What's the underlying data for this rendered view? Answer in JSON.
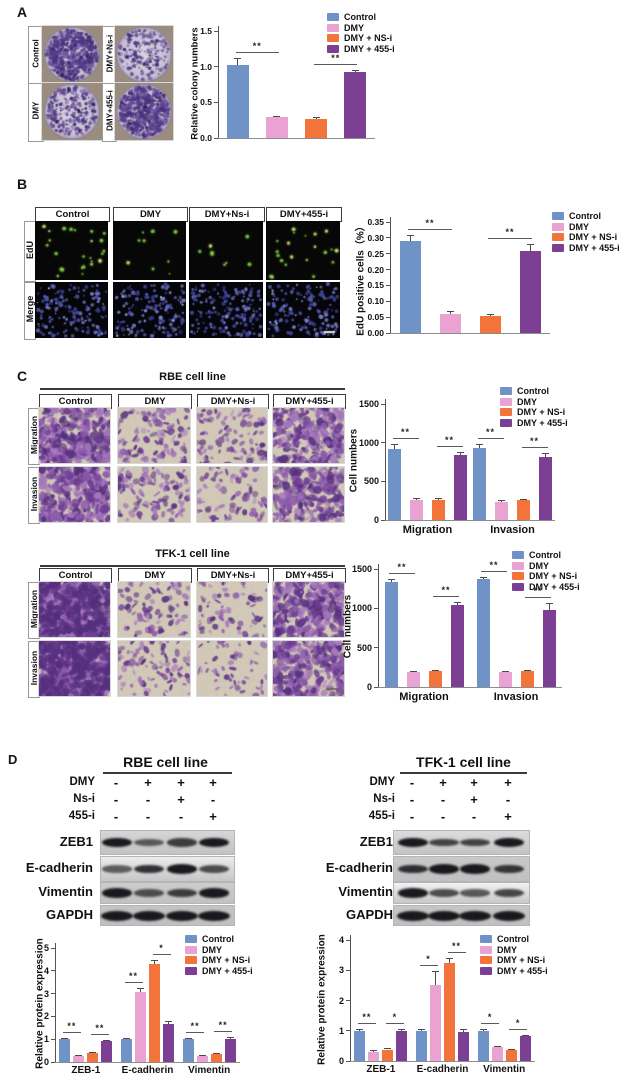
{
  "panels": {
    "A": {
      "label": "A",
      "colony_images": [
        {
          "label": "Control",
          "density": "high"
        },
        {
          "label": "DMY+Ns-i",
          "density": "low"
        },
        {
          "label": "DMY",
          "density": "medium"
        },
        {
          "label": "DMY+455-i",
          "density": "high"
        }
      ]
    },
    "B": {
      "label": "B",
      "col_headers": [
        "Control",
        "DMY",
        "DMY+Ns-i",
        "DMY+455-i"
      ],
      "row_labels": [
        "EdU",
        "Merge"
      ],
      "edu_dot_counts": [
        26,
        9,
        8,
        21
      ],
      "merge_cell_counts": [
        150,
        145,
        150,
        148
      ]
    },
    "C": {
      "label": "C",
      "sections": [
        {
          "title": "RBE cell line",
          "col_headers": [
            "Control",
            "DMY",
            "DMY+Ns-i",
            "DMY+455-i"
          ],
          "row_labels": [
            "Migration",
            "Invasion"
          ],
          "densities": [
            [
              0.55,
              0.2,
              0.17,
              0.45
            ],
            [
              0.52,
              0.2,
              0.15,
              0.42
            ]
          ]
        },
        {
          "title": "TFK-1 cell line",
          "col_headers": [
            "Control",
            "DMY",
            "DMY+Ns-i",
            "DMY+455-i"
          ],
          "row_labels": [
            "Migration",
            "Invasion"
          ],
          "densities": [
            [
              0.8,
              0.15,
              0.12,
              0.5
            ],
            [
              0.78,
              0.16,
              0.1,
              0.48
            ]
          ]
        }
      ]
    },
    "D": {
      "label": "D",
      "sections": [
        {
          "title": "RBE cell line",
          "dose_rows": [
            {
              "label": "DMY",
              "values": [
                "-",
                "+",
                "+",
                "+"
              ]
            },
            {
              "label": "Ns-i",
              "values": [
                "-",
                "-",
                "+",
                "-"
              ]
            },
            {
              "label": "455-i",
              "values": [
                "-",
                "-",
                "-",
                "+"
              ]
            }
          ],
          "blot_labels": [
            "ZEB1",
            "E-cadherin",
            "Vimentin",
            "GAPDH"
          ],
          "band_intensities": [
            [
              1,
              0.45,
              0.7,
              1
            ],
            [
              0.45,
              0.8,
              1,
              0.6
            ],
            [
              1,
              0.55,
              0.7,
              1
            ],
            [
              1,
              1,
              1,
              1
            ]
          ]
        },
        {
          "title": "TFK-1 cell line",
          "dose_rows": [
            {
              "label": "DMY",
              "values": [
                "-",
                "+",
                "+",
                "+"
              ]
            },
            {
              "label": "Ns-i",
              "values": [
                "-",
                "-",
                "+",
                "-"
              ]
            },
            {
              "label": "455-i",
              "values": [
                "-",
                "-",
                "-",
                "+"
              ]
            }
          ],
          "blot_labels": [
            "ZEB1",
            "E-cadherin",
            "Vimentin",
            "GAPDH"
          ],
          "band_intensities": [
            [
              1,
              0.65,
              0.65,
              1
            ],
            [
              0.8,
              1,
              1,
              0.75
            ],
            [
              1,
              0.6,
              0.5,
              0.65
            ],
            [
              1,
              1,
              1,
              1
            ]
          ]
        }
      ]
    }
  },
  "legend_labels": [
    "Control",
    "DMY",
    "DMY + NS-i",
    "DMY + 455-i"
  ],
  "series_colors": [
    "#6f93c6",
    "#e9a2d2",
    "#f2743a",
    "#7c3f93"
  ],
  "chart_data": [
    {
      "id": "A",
      "type": "bar",
      "ylabel": "Relative colony numbers",
      "ylim": [
        0,
        1.5
      ],
      "yticks": [
        "0.0",
        "0.5",
        "1.0",
        "1.5"
      ],
      "categories": [
        ""
      ],
      "series": [
        {
          "name": "Control",
          "values": [
            1.03
          ],
          "errors": [
            0.09
          ]
        },
        {
          "name": "DMY",
          "values": [
            0.29
          ],
          "errors": [
            0.025
          ]
        },
        {
          "name": "DMY + NS-i",
          "values": [
            0.27
          ],
          "errors": [
            0.03
          ]
        },
        {
          "name": "DMY + 455-i",
          "values": [
            0.93
          ],
          "errors": [
            0.02
          ]
        }
      ],
      "significance": [
        {
          "group": 0,
          "pair": [
            0,
            1
          ],
          "label": "**"
        },
        {
          "group": 0,
          "pair": [
            2,
            3
          ],
          "label": "**"
        }
      ],
      "legend_position": "top-right"
    },
    {
      "id": "B",
      "type": "bar",
      "ylabel": "EdU positive cells（%）",
      "ylim": [
        0,
        0.35
      ],
      "yticks": [
        "0.00",
        "0.05",
        "0.10",
        "0.15",
        "0.20",
        "0.25",
        "0.30",
        "0.35"
      ],
      "categories": [
        ""
      ],
      "series": [
        {
          "name": "Control",
          "values": [
            0.29
          ],
          "errors": [
            0.018
          ]
        },
        {
          "name": "DMY",
          "values": [
            0.06
          ],
          "errors": [
            0.008
          ]
        },
        {
          "name": "DMY + NS-i",
          "values": [
            0.055
          ],
          "errors": [
            0.005
          ]
        },
        {
          "name": "DMY + 455-i",
          "values": [
            0.26
          ],
          "errors": [
            0.022
          ]
        }
      ],
      "significance": [
        {
          "group": 0,
          "pair": [
            0,
            1
          ],
          "label": "**"
        },
        {
          "group": 0,
          "pair": [
            2,
            3
          ],
          "label": "**"
        }
      ],
      "legend_position": "top-right"
    },
    {
      "id": "C-RBE",
      "type": "bar",
      "ylabel": "Cell numbers",
      "ylim": [
        0,
        1500
      ],
      "yticks": [
        "0",
        "500",
        "1000",
        "1500"
      ],
      "categories": [
        "Migration",
        "Invasion"
      ],
      "series": [
        {
          "name": "Control",
          "values": [
            920,
            930
          ],
          "errors": [
            60,
            55
          ]
        },
        {
          "name": "DMY",
          "values": [
            265,
            235
          ],
          "errors": [
            15,
            20
          ]
        },
        {
          "name": "DMY + NS-i",
          "values": [
            260,
            260
          ],
          "errors": [
            20,
            15
          ]
        },
        {
          "name": "DMY + 455-i",
          "values": [
            840,
            820
          ],
          "errors": [
            45,
            40
          ]
        }
      ],
      "significance": [
        {
          "group": 0,
          "pair": [
            0,
            1
          ],
          "label": "**"
        },
        {
          "group": 0,
          "pair": [
            2,
            3
          ],
          "label": "**"
        },
        {
          "group": 1,
          "pair": [
            0,
            1
          ],
          "label": "**"
        },
        {
          "group": 1,
          "pair": [
            2,
            3
          ],
          "label": "**"
        }
      ],
      "legend_position": "top-right"
    },
    {
      "id": "C-TFK",
      "type": "bar",
      "ylabel": "Cell numbers",
      "ylim": [
        0,
        1500
      ],
      "yticks": [
        "0",
        "500",
        "1000",
        "1500"
      ],
      "categories": [
        "Migration",
        "Invasion"
      ],
      "series": [
        {
          "name": "Control",
          "values": [
            1340,
            1370
          ],
          "errors": [
            35,
            30
          ]
        },
        {
          "name": "DMY",
          "values": [
            185,
            190
          ],
          "errors": [
            15,
            15
          ]
        },
        {
          "name": "DMY + NS-i",
          "values": [
            200,
            205
          ],
          "errors": [
            15,
            15
          ]
        },
        {
          "name": "DMY + 455-i",
          "values": [
            1045,
            975
          ],
          "errors": [
            40,
            90
          ]
        }
      ],
      "significance": [
        {
          "group": 0,
          "pair": [
            0,
            1
          ],
          "label": "**"
        },
        {
          "group": 0,
          "pair": [
            2,
            3
          ],
          "label": "**"
        },
        {
          "group": 1,
          "pair": [
            0,
            1
          ],
          "label": "**"
        },
        {
          "group": 1,
          "pair": [
            2,
            3
          ],
          "label": "**"
        }
      ],
      "legend_position": "top-right"
    },
    {
      "id": "D-RBE",
      "type": "bar",
      "ylabel": "Relative protein expression",
      "ylim": [
        0,
        5
      ],
      "yticks": [
        "0",
        "1",
        "2",
        "3",
        "4",
        "5"
      ],
      "categories": [
        "ZEB-1",
        "E-cadherin",
        "Vimentin"
      ],
      "series": [
        {
          "name": "Control",
          "values": [
            1.0,
            1.0,
            1.0
          ],
          "errors": [
            0.05,
            0.05,
            0.05
          ]
        },
        {
          "name": "DMY",
          "values": [
            0.27,
            3.08,
            0.28
          ],
          "errors": [
            0.04,
            0.18,
            0.04
          ]
        },
        {
          "name": "DMY + NS-i",
          "values": [
            0.38,
            4.28,
            0.35
          ],
          "errors": [
            0.04,
            0.2,
            0.04
          ]
        },
        {
          "name": "DMY + 455-i",
          "values": [
            0.92,
            1.65,
            1.02
          ],
          "errors": [
            0.05,
            0.15,
            0.08
          ]
        }
      ],
      "significance": [
        {
          "group": 0,
          "pair": [
            0,
            1
          ],
          "label": "**"
        },
        {
          "group": 0,
          "pair": [
            2,
            3
          ],
          "label": "**"
        },
        {
          "group": 1,
          "pair": [
            0,
            1
          ],
          "label": "**"
        },
        {
          "group": 1,
          "pair": [
            2,
            3
          ],
          "label": "*"
        },
        {
          "group": 2,
          "pair": [
            0,
            1
          ],
          "label": "**"
        },
        {
          "group": 2,
          "pair": [
            2,
            3
          ],
          "label": "**"
        }
      ],
      "legend_position": "top-right"
    },
    {
      "id": "D-TFK",
      "type": "bar",
      "ylabel": "Relative protein expression",
      "ylim": [
        0,
        4
      ],
      "yticks": [
        "0",
        "1",
        "2",
        "3",
        "4"
      ],
      "categories": [
        "ZEB-1",
        "E-cadherin",
        "Vimentin"
      ],
      "series": [
        {
          "name": "Control",
          "values": [
            1.0,
            1.0,
            1.0
          ],
          "errors": [
            0.05,
            0.05,
            0.05
          ]
        },
        {
          "name": "DMY",
          "values": [
            0.31,
            2.52,
            0.46
          ],
          "errors": [
            0.04,
            0.45,
            0.05
          ]
        },
        {
          "name": "DMY + NS-i",
          "values": [
            0.38,
            3.25,
            0.35
          ],
          "errors": [
            0.04,
            0.14,
            0.04
          ]
        },
        {
          "name": "DMY + 455-i",
          "values": [
            1.0,
            0.97,
            0.82
          ],
          "errors": [
            0.06,
            0.1,
            0.05
          ]
        }
      ],
      "significance": [
        {
          "group": 0,
          "pair": [
            0,
            1
          ],
          "label": "**"
        },
        {
          "group": 0,
          "pair": [
            2,
            3
          ],
          "label": "*"
        },
        {
          "group": 1,
          "pair": [
            0,
            1
          ],
          "label": "*"
        },
        {
          "group": 1,
          "pair": [
            2,
            3
          ],
          "label": "**"
        },
        {
          "group": 2,
          "pair": [
            0,
            1
          ],
          "label": "*"
        },
        {
          "group": 2,
          "pair": [
            2,
            3
          ],
          "label": "*"
        }
      ],
      "legend_position": "top-right"
    }
  ]
}
